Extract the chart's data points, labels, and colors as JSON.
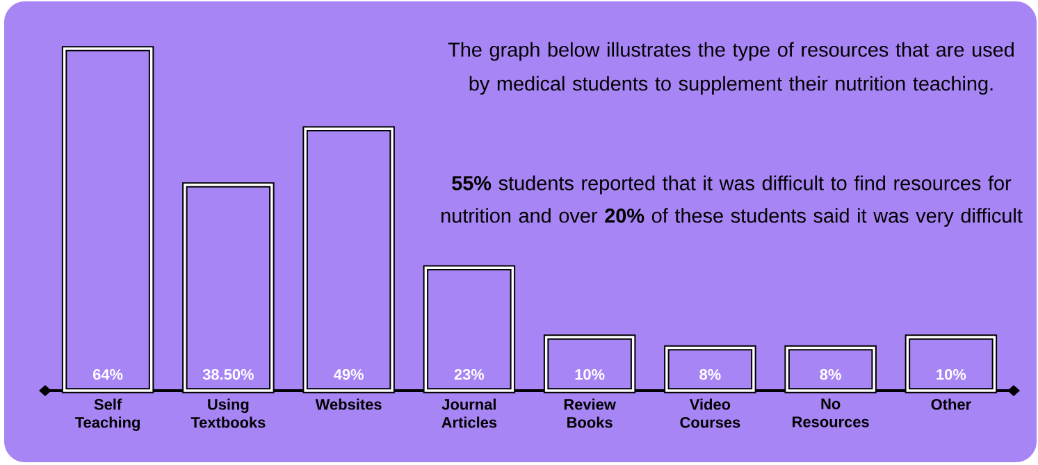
{
  "chart_data": {
    "type": "bar",
    "title": "The graph below illustrates the type of  resources that are used by medical students to supplement their nutrition teaching.",
    "annotations": [
      "**55%** students reported that it was difficult to find resources for nutrition and over **20%** of these students said it was very difficult"
    ],
    "categories": [
      "Self Teaching",
      "Using Textbooks",
      "Websites",
      "Journal Articles",
      "Review Books",
      "Video Courses",
      "No Resources",
      "Other"
    ],
    "values": [
      64,
      38.5,
      49,
      23,
      10,
      8,
      8,
      10
    ],
    "value_labels": [
      "64%",
      "38.50%",
      "49%",
      "23%",
      "10%",
      "8%",
      "8%",
      "10%"
    ],
    "color": "#a885f5"
  }
}
